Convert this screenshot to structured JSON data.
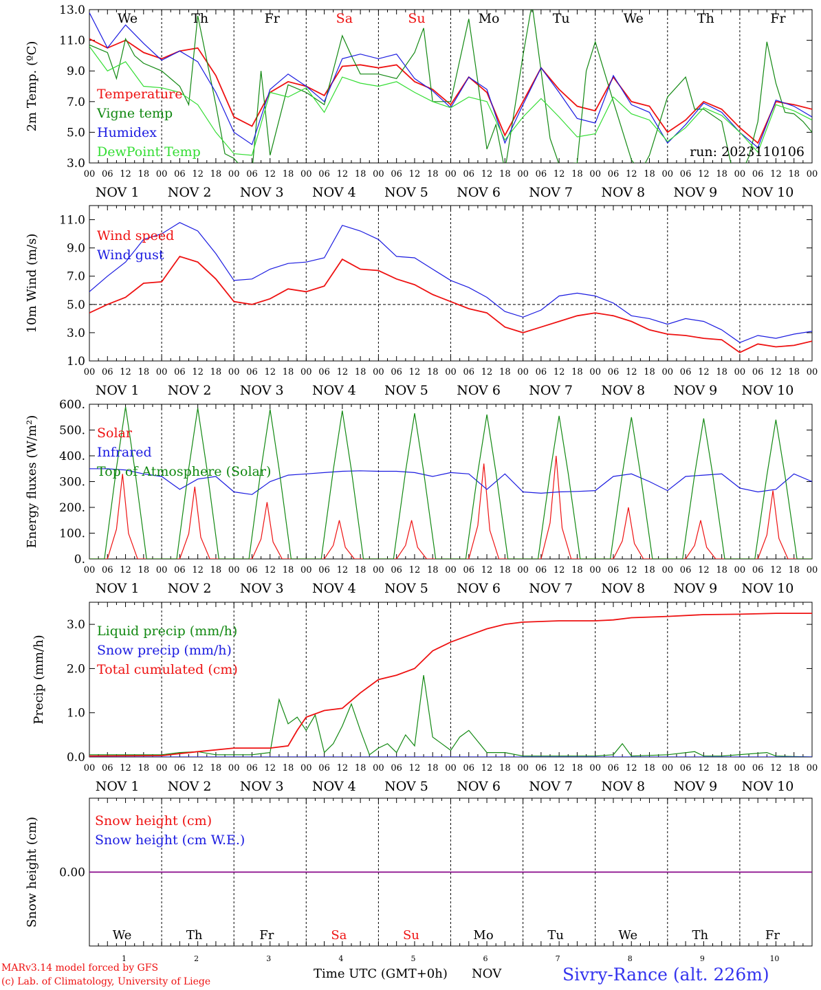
{
  "run_label": "run: 2023110106",
  "footer": {
    "credit_line1": "MARv3.14 model forced by GFS",
    "credit_line2": "(c) Lab. of Climatology, University of Liege",
    "time_axis": "Time UTC (GMT+0h)",
    "nov_label": "NOV",
    "station": "Sivry-Rance (alt. 226m)"
  },
  "colors": {
    "red": "#ee1111",
    "green": "#118811",
    "blue": "#1a1ae0",
    "lightgreen": "#33dd33",
    "purple": "#880088",
    "weekend": "#ee1111"
  },
  "days": {
    "weekdays": [
      "We",
      "Th",
      "Fr",
      "Sa",
      "Su",
      "Mo",
      "Tu",
      "We",
      "Th",
      "Fr"
    ],
    "weekend_flags": [
      false,
      false,
      false,
      true,
      true,
      false,
      false,
      false,
      false,
      false
    ],
    "dates": [
      "NOV  1",
      "NOV  2",
      "NOV  3",
      "NOV  4",
      "NOV  5",
      "NOV  6",
      "NOV  7",
      "NOV  8",
      "NOV  9",
      "NOV 10"
    ],
    "day_numbers": [
      "1",
      "2",
      "3",
      "4",
      "5",
      "6",
      "7",
      "8",
      "9",
      "10"
    ],
    "hour_ticks": [
      "00",
      "06",
      "12",
      "18"
    ],
    "final_tick": "00"
  },
  "chart_data": [
    {
      "type": "line",
      "ylabel": "2m Temp. (ºC)",
      "ylim": [
        3.0,
        13.0
      ],
      "yticks": [
        "3.0",
        "5.0",
        "7.0",
        "9.0",
        "11.0",
        "13.0"
      ],
      "x_unit": "hours since NOV 1 00 UTC",
      "series": [
        {
          "name": "Temperature",
          "color": "red",
          "x": [
            0,
            6,
            12,
            18,
            24,
            30,
            36,
            42,
            48,
            54,
            60,
            66,
            72,
            78,
            84,
            90,
            96,
            102,
            108,
            114,
            120,
            126,
            132,
            138,
            144,
            150,
            156,
            162,
            168,
            174,
            180,
            186,
            192,
            198,
            204,
            210,
            216,
            222,
            228,
            234,
            240
          ],
          "values": [
            11.1,
            10.5,
            11.0,
            10.2,
            9.8,
            10.3,
            10.5,
            8.7,
            6.0,
            5.4,
            7.6,
            8.3,
            8.0,
            7.4,
            9.3,
            9.4,
            9.2,
            9.4,
            8.3,
            7.8,
            6.8,
            8.6,
            7.6,
            4.8,
            7.0,
            9.2,
            7.8,
            6.7,
            6.4,
            8.6,
            7.0,
            6.7,
            5.0,
            5.8,
            7.0,
            6.5,
            5.3,
            4.3,
            7.0,
            6.8,
            6.5
          ]
        },
        {
          "name": "Vigne temp",
          "color": "green",
          "x": [
            0,
            6,
            9,
            12,
            15,
            18,
            24,
            30,
            33,
            36,
            42,
            45,
            48,
            51,
            54,
            57,
            60,
            66,
            72,
            78,
            84,
            87,
            90,
            96,
            102,
            108,
            111,
            114,
            120,
            126,
            129,
            132,
            135,
            138,
            144,
            147,
            150,
            153,
            156,
            162,
            165,
            168,
            174,
            180,
            183,
            186,
            192,
            198,
            201,
            204,
            210,
            213,
            216,
            219,
            222,
            225,
            228,
            231,
            234,
            237,
            240
          ],
          "values": [
            10.7,
            10.2,
            8.5,
            11.1,
            10.0,
            9.5,
            9.0,
            8.0,
            6.8,
            12.6,
            6.8,
            3.6,
            3.3,
            2.6,
            2.4,
            9.0,
            3.5,
            8.1,
            7.6,
            6.8,
            11.3,
            10.0,
            8.8,
            8.8,
            8.5,
            10.2,
            11.8,
            7.0,
            7.0,
            12.4,
            8.3,
            3.9,
            5.5,
            2.5,
            10.0,
            13.4,
            9.0,
            4.6,
            2.9,
            3.0,
            9.0,
            10.9,
            7.0,
            3.2,
            2.4,
            3.5,
            7.3,
            8.6,
            6.5,
            6.5,
            5.7,
            3.0,
            2.1,
            3.4,
            5.7,
            10.9,
            8.2,
            6.3,
            6.2,
            5.7,
            5.0
          ]
        },
        {
          "name": "Humidex",
          "color": "blue",
          "x": [
            0,
            6,
            12,
            18,
            24,
            30,
            36,
            42,
            48,
            54,
            60,
            66,
            72,
            78,
            84,
            90,
            96,
            102,
            108,
            114,
            120,
            126,
            132,
            138,
            144,
            150,
            156,
            162,
            168,
            174,
            180,
            186,
            192,
            198,
            204,
            210,
            216,
            222,
            228,
            234,
            240
          ],
          "values": [
            12.8,
            10.5,
            12.0,
            10.8,
            9.7,
            10.3,
            9.6,
            7.6,
            5.0,
            4.2,
            7.8,
            8.8,
            8.0,
            7.0,
            9.8,
            10.1,
            9.8,
            10.1,
            8.5,
            7.7,
            6.6,
            8.6,
            7.8,
            4.3,
            6.8,
            9.2,
            7.6,
            5.9,
            5.6,
            8.7,
            6.8,
            6.3,
            4.3,
            5.5,
            6.9,
            6.3,
            5.0,
            4.0,
            7.1,
            6.7,
            6.0
          ]
        },
        {
          "name": "DewPoint Temp",
          "color": "lightgreen",
          "x": [
            0,
            6,
            12,
            18,
            24,
            30,
            36,
            42,
            48,
            54,
            60,
            66,
            72,
            78,
            84,
            90,
            96,
            102,
            108,
            114,
            120,
            126,
            132,
            138,
            144,
            150,
            156,
            162,
            168,
            174,
            180,
            186,
            192,
            198,
            204,
            210,
            216,
            222,
            228,
            234,
            240
          ],
          "values": [
            10.6,
            9.0,
            9.6,
            8.0,
            7.9,
            7.6,
            6.8,
            5.0,
            3.6,
            3.5,
            7.6,
            7.3,
            7.9,
            6.3,
            8.6,
            8.2,
            8.0,
            8.3,
            7.6,
            7.0,
            6.6,
            7.3,
            7.0,
            4.5,
            6.0,
            7.2,
            6.0,
            4.7,
            4.9,
            7.3,
            6.2,
            5.8,
            4.4,
            5.3,
            6.6,
            6.1,
            5.0,
            3.7,
            6.8,
            6.4,
            5.8
          ]
        }
      ]
    },
    {
      "type": "line",
      "ylabel": "10m Wind (m/s)",
      "ylim": [
        1.0,
        12.0
      ],
      "yticks": [
        "1.0",
        "3.0",
        "5.0",
        "7.0",
        "9.0",
        "11.0"
      ],
      "reference_line": 5.0,
      "series": [
        {
          "name": "Wind speed",
          "color": "red",
          "x": [
            0,
            6,
            12,
            18,
            24,
            30,
            36,
            42,
            48,
            54,
            60,
            66,
            72,
            78,
            84,
            90,
            96,
            102,
            108,
            114,
            120,
            126,
            132,
            138,
            144,
            150,
            156,
            162,
            168,
            174,
            180,
            186,
            192,
            198,
            204,
            210,
            216,
            222,
            228,
            234,
            240
          ],
          "values": [
            4.4,
            5.0,
            5.5,
            6.5,
            6.6,
            8.4,
            8.0,
            6.8,
            5.2,
            5.0,
            5.4,
            6.1,
            5.9,
            6.3,
            8.2,
            7.5,
            7.4,
            6.8,
            6.4,
            5.7,
            5.2,
            4.7,
            4.4,
            3.4,
            3.0,
            3.4,
            3.8,
            4.2,
            4.4,
            4.2,
            3.8,
            3.2,
            2.9,
            2.8,
            2.6,
            2.5,
            1.6,
            2.2,
            2.0,
            2.1,
            2.4
          ]
        },
        {
          "name": "Wind gust",
          "color": "blue",
          "x": [
            0,
            6,
            12,
            18,
            24,
            30,
            36,
            42,
            48,
            54,
            60,
            66,
            72,
            78,
            84,
            90,
            96,
            102,
            108,
            114,
            120,
            126,
            132,
            138,
            144,
            150,
            156,
            162,
            168,
            174,
            180,
            186,
            192,
            198,
            204,
            210,
            216,
            222,
            228,
            234,
            240
          ],
          "values": [
            5.9,
            7.0,
            8.0,
            9.6,
            10.0,
            10.8,
            10.2,
            8.6,
            6.7,
            6.8,
            7.5,
            7.9,
            8.0,
            8.3,
            10.6,
            10.2,
            9.6,
            8.4,
            8.3,
            7.5,
            6.7,
            6.2,
            5.5,
            4.5,
            4.1,
            4.6,
            5.6,
            5.8,
            5.6,
            5.1,
            4.2,
            4.0,
            3.6,
            4.0,
            3.8,
            3.2,
            2.3,
            2.8,
            2.6,
            2.9,
            3.1
          ]
        }
      ]
    },
    {
      "type": "line",
      "ylabel": "Energy fluxes (W/m²)",
      "ylim": [
        0,
        600
      ],
      "yticks": [
        "0.",
        "100.",
        "200.",
        "300.",
        "400.",
        "500.",
        "600."
      ],
      "series": [
        {
          "name": "Solar",
          "color": "red",
          "peaks": [
            {
              "x": 11,
              "value": 330
            },
            {
              "x": 35,
              "value": 280
            },
            {
              "x": 59,
              "value": 220
            },
            {
              "x": 83,
              "value": 150
            },
            {
              "x": 107,
              "value": 150
            },
            {
              "x": 131,
              "value": 370
            },
            {
              "x": 155,
              "value": 400
            },
            {
              "x": 179,
              "value": 200
            },
            {
              "x": 203,
              "value": 150
            },
            {
              "x": 227,
              "value": 265
            }
          ]
        },
        {
          "name": "Infrared",
          "color": "blue",
          "x": [
            0,
            6,
            12,
            18,
            24,
            30,
            36,
            42,
            48,
            54,
            60,
            66,
            72,
            78,
            84,
            90,
            96,
            102,
            108,
            114,
            120,
            126,
            132,
            138,
            144,
            150,
            156,
            162,
            168,
            174,
            180,
            186,
            192,
            198,
            204,
            210,
            216,
            222,
            228,
            234,
            240
          ],
          "values": [
            350,
            350,
            345,
            330,
            320,
            270,
            310,
            320,
            260,
            250,
            300,
            325,
            330,
            335,
            340,
            342,
            340,
            340,
            335,
            320,
            335,
            330,
            270,
            330,
            260,
            255,
            260,
            262,
            265,
            320,
            330,
            300,
            265,
            320,
            325,
            330,
            275,
            260,
            270,
            330,
            300
          ]
        },
        {
          "name": "Top of Atmosphere (Solar)",
          "color": "green",
          "peaks": [
            {
              "x": 12,
              "value": 590
            },
            {
              "x": 36,
              "value": 585
            },
            {
              "x": 60,
              "value": 580
            },
            {
              "x": 84,
              "value": 575
            },
            {
              "x": 108,
              "value": 565
            },
            {
              "x": 132,
              "value": 560
            },
            {
              "x": 156,
              "value": 555
            },
            {
              "x": 180,
              "value": 550
            },
            {
              "x": 204,
              "value": 545
            },
            {
              "x": 228,
              "value": 540
            }
          ]
        }
      ]
    },
    {
      "type": "line",
      "ylabel": "Precip (mm/h)",
      "ylim": [
        0.0,
        3.5
      ],
      "yticks": [
        "0.0",
        "1.0",
        "2.0",
        "3.0"
      ],
      "series": [
        {
          "name": "Liquid precip (mm/h)",
          "color": "green",
          "x": [
            0,
            24,
            30,
            36,
            42,
            54,
            60,
            63,
            66,
            69,
            72,
            75,
            78,
            81,
            84,
            87,
            90,
            93,
            96,
            99,
            102,
            105,
            108,
            111,
            114,
            117,
            120,
            123,
            126,
            132,
            138,
            144,
            156,
            168,
            174,
            177,
            180,
            192,
            201,
            204,
            210,
            225,
            228,
            240
          ],
          "values": [
            0.05,
            0.05,
            0.1,
            0.12,
            0.05,
            0.05,
            0.1,
            1.3,
            0.75,
            0.9,
            0.6,
            0.95,
            0.1,
            0.3,
            0.7,
            1.2,
            0.6,
            0.05,
            0.2,
            0.3,
            0.1,
            0.5,
            0.25,
            1.85,
            0.45,
            0.3,
            0.15,
            0.45,
            0.6,
            0.1,
            0.1,
            0.02,
            0.02,
            0.02,
            0.05,
            0.3,
            0.02,
            0.05,
            0.12,
            0.02,
            0.02,
            0.1,
            0.02,
            0.0
          ]
        },
        {
          "name": "Snow precip (mm/h)",
          "color": "blue",
          "x": [
            0,
            240
          ],
          "values": [
            0,
            0
          ]
        },
        {
          "name": "Total cumulated (cm)",
          "color": "red",
          "x": [
            0,
            24,
            36,
            48,
            60,
            66,
            69,
            72,
            78,
            84,
            90,
            96,
            102,
            108,
            114,
            120,
            126,
            132,
            138,
            144,
            156,
            168,
            174,
            180,
            192,
            204,
            216,
            228,
            240
          ],
          "values": [
            0.02,
            0.03,
            0.12,
            0.2,
            0.2,
            0.25,
            0.6,
            0.9,
            1.05,
            1.1,
            1.45,
            1.75,
            1.85,
            2.0,
            2.4,
            2.6,
            2.75,
            2.9,
            3.0,
            3.05,
            3.08,
            3.08,
            3.1,
            3.15,
            3.18,
            3.22,
            3.23,
            3.25,
            3.25
          ]
        }
      ]
    },
    {
      "type": "line",
      "ylabel": "Snow height (cm)",
      "ylim": [
        -1.0,
        1.0
      ],
      "yticks": [
        "0.00"
      ],
      "series": [
        {
          "name": "Snow height (cm)",
          "color": "red",
          "x": [
            0,
            240
          ],
          "values": [
            0,
            0
          ]
        },
        {
          "name": "Snow height (cm W.E.)",
          "color": "blue",
          "x": [
            0,
            240
          ],
          "values": [
            0,
            0
          ]
        }
      ]
    }
  ]
}
